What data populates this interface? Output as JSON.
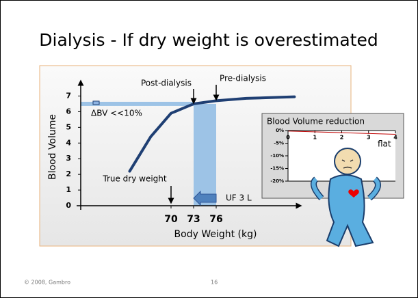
{
  "title": "Dialysis - If dry weight is overestimated",
  "chart_data": [
    {
      "type": "line",
      "y_label": "Blood Volume",
      "x_label": "Body Weight (kg)",
      "x": [
        64.5,
        67.3,
        70,
        73,
        76,
        80,
        86.4
      ],
      "values": [
        2.2,
        4.4,
        5.9,
        6.5,
        6.7,
        6.85,
        6.95
      ],
      "color": "#1f3f73",
      "xlim": [
        58,
        87
      ],
      "ylim": [
        0,
        7.5
      ],
      "xticks": [
        70,
        73,
        76
      ],
      "yticks": [
        0,
        1,
        2,
        3,
        4,
        5,
        6,
        7
      ],
      "annotations": {
        "post": "Post-dialysis",
        "pre": "Pre-dialysis",
        "dry": "True dry weight",
        "dbv": "ΔBV <<10%",
        "uf": "UF 3 L"
      }
    },
    {
      "type": "line",
      "title": "Blood Volume reduction",
      "x": [
        0,
        4
      ],
      "values": [
        -0.2,
        -1.5
      ],
      "color": "#c00000",
      "xlim": [
        0,
        4
      ],
      "ylim": [
        -20,
        0
      ],
      "xticks": [
        0,
        1,
        2,
        3,
        4
      ],
      "yticks": [
        {
          "value": 0,
          "label": "0%"
        },
        {
          "value": -5,
          "label": "-5%"
        },
        {
          "value": -10,
          "label": "-10%"
        },
        {
          "value": -15,
          "label": "-15%"
        },
        {
          "value": -20,
          "label": "-20%"
        }
      ],
      "annotation": "flat"
    }
  ],
  "footer": {
    "copyright": "© 2008, Gambro",
    "page": "16"
  }
}
